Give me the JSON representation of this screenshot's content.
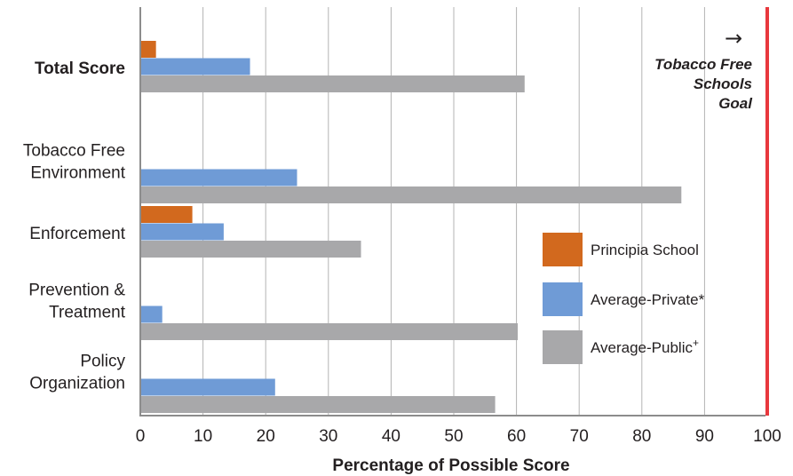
{
  "chart_data": {
    "type": "bar",
    "orientation": "horizontal",
    "title": "",
    "xlabel": "Percentage of Possible Score",
    "ylabel": "",
    "xlim": [
      0,
      100
    ],
    "x_ticks": [
      0,
      10,
      20,
      30,
      40,
      50,
      60,
      70,
      80,
      90,
      100
    ],
    "grid": true,
    "categories": [
      {
        "lines": [
          "Total Score"
        ],
        "bold": true
      },
      {
        "lines": [
          "Tobacco Free",
          "Environment"
        ],
        "bold": false
      },
      {
        "lines": [
          "Enforcement"
        ],
        "bold": false
      },
      {
        "lines": [
          "Prevention &",
          "Treatment"
        ],
        "bold": false
      },
      {
        "lines": [
          "Policy",
          "Organization"
        ],
        "bold": false
      }
    ],
    "series": [
      {
        "name": "Principia School",
        "color": "#d2691e",
        "values": [
          2.5,
          0,
          8.3,
          0,
          0
        ]
      },
      {
        "name": "Average-Private*",
        "color": "#6f9bd6",
        "values": [
          17.5,
          25,
          13.3,
          3.5,
          21.5
        ]
      },
      {
        "name": "Average-Public",
        "name_sup": "+",
        "color": "#a8a8aa",
        "values": [
          61.3,
          86.3,
          35.2,
          60.2,
          56.6
        ]
      }
    ],
    "legend_position": "right",
    "goal": {
      "value": 100,
      "color": "#e8383d",
      "arrow": "→",
      "label_lines": [
        "Tobacco Free",
        "Schools",
        "Goal"
      ]
    }
  }
}
